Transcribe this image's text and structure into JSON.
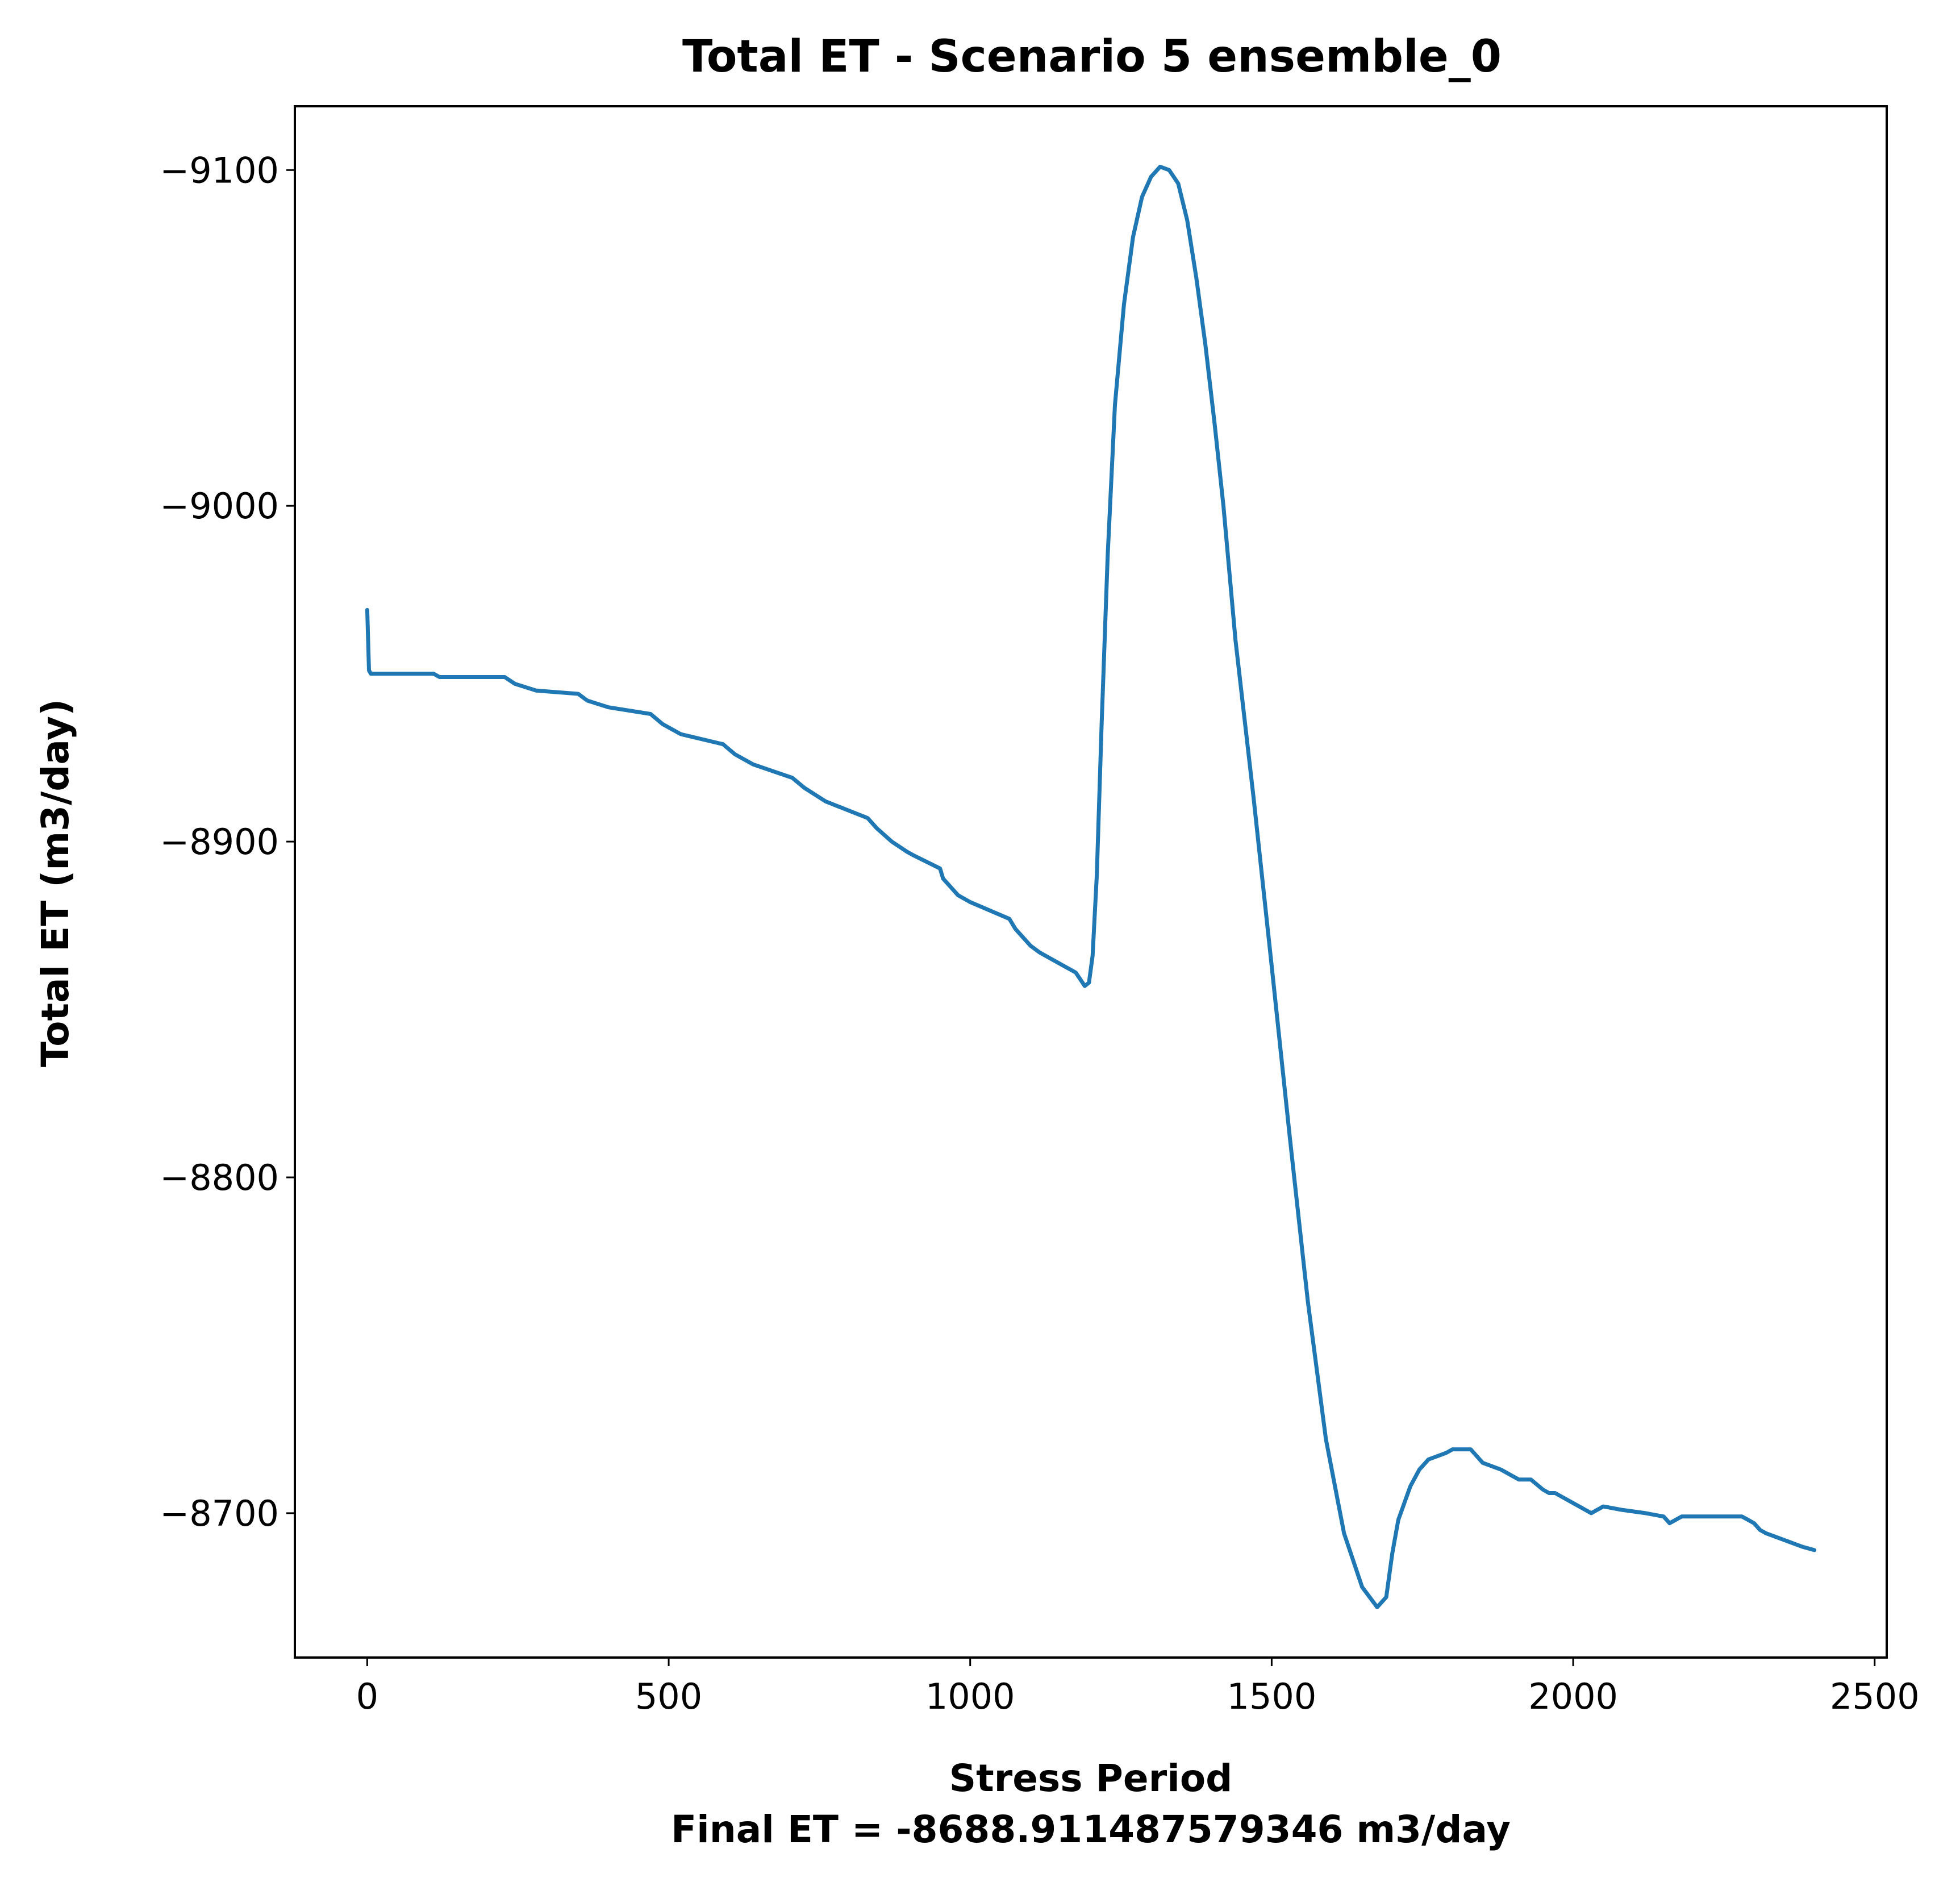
{
  "chart_data": {
    "type": "line",
    "title": "Total ET - Scenario 5 ensemble_0",
    "xlabel": "Stress Period",
    "xlabel_note": "Final ET = -8688.911487579346 m3/day",
    "ylabel": "Total ET (m3/day)",
    "xlim": [
      -120,
      2520
    ],
    "ylim": [
      -9119,
      -8657
    ],
    "y_inverted": true,
    "grid": false,
    "line_color": "#1f77b4",
    "xticks": [
      0,
      500,
      1000,
      1500,
      2000,
      2500
    ],
    "xtick_labels": [
      "0",
      "500",
      "1000",
      "1500",
      "2000",
      "2500"
    ],
    "yticks": [
      -9100,
      -9000,
      -8900,
      -8800,
      -8700
    ],
    "ytick_labels": [
      "−9100",
      "−9000",
      "−8900",
      "−8800",
      "−8700"
    ],
    "series": [
      {
        "x": [
          0,
          3,
          6,
          60,
          110,
          120,
          170,
          228,
          245,
          280,
          350,
          365,
          400,
          470,
          490,
          520,
          590,
          610,
          640,
          705,
          725,
          760,
          830,
          845,
          870,
          895,
          905,
          950,
          955,
          970,
          980,
          1000,
          1065,
          1075,
          1085,
          1100,
          1115,
          1135,
          1155,
          1175,
          1190,
          1197,
          1203,
          1210,
          1218,
          1228,
          1240,
          1255,
          1270,
          1285,
          1300,
          1315,
          1330,
          1345,
          1360,
          1375,
          1390,
          1405,
          1420,
          1440,
          1470,
          1500,
          1530,
          1560,
          1590,
          1620,
          1650,
          1675,
          1690,
          1700,
          1710,
          1720,
          1730,
          1745,
          1760,
          1775,
          1790,
          1800,
          1810,
          1820,
          1830,
          1850,
          1880,
          1910,
          1930,
          1950,
          1960,
          1970,
          2000,
          2030,
          2050,
          2080,
          2120,
          2150,
          2160,
          2180,
          2220,
          2270,
          2280,
          2300,
          2310,
          2320,
          2350,
          2380,
          2400
        ],
        "y": [
          -8969,
          -8951,
          -8950,
          -8950,
          -8950,
          -8949,
          -8949,
          -8949,
          -8947,
          -8945,
          -8944,
          -8942,
          -8940,
          -8938,
          -8935,
          -8932,
          -8929,
          -8926,
          -8923,
          -8919,
          -8916,
          -8912,
          -8907,
          -8904,
          -8900,
          -8897,
          -8896,
          -8892,
          -8889,
          -8886,
          -8884,
          -8882,
          -8877,
          -8874,
          -8872,
          -8869,
          -8867,
          -8865,
          -8863,
          -8861,
          -8857,
          -8858,
          -8866,
          -8890,
          -8935,
          -8985,
          -9030,
          -9060,
          -9080,
          -9092,
          -9098,
          -9101,
          -9100,
          -9096,
          -9085,
          -9068,
          -9048,
          -9025,
          -9000,
          -8960,
          -8913,
          -8863,
          -8812,
          -8763,
          -8722,
          -8694,
          -8678,
          -8672,
          -8675,
          -8688,
          -8698,
          -8703,
          -8708,
          -8713,
          -8716,
          -8717,
          -8718,
          -8719,
          -8719,
          -8719,
          -8719,
          -8715,
          -8713,
          -8710,
          -8710,
          -8707,
          -8706,
          -8706,
          -8703,
          -8700,
          -8702,
          -8701,
          -8700,
          -8699,
          -8697,
          -8699,
          -8699,
          -8699,
          -8699,
          -8697,
          -8695,
          -8694,
          -8692,
          -8690,
          -8689
        ]
      }
    ]
  }
}
